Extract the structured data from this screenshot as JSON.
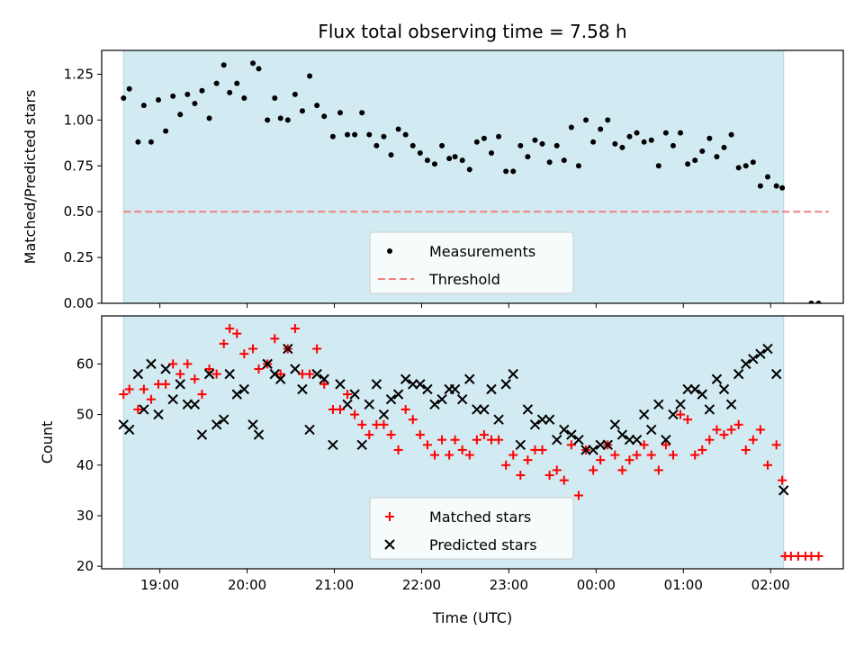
{
  "chart_data": [
    {
      "type": "scatter",
      "title": "Flux total observing time = 7.58 h",
      "xlabel": "",
      "ylabel": "Matched/Predicted stars",
      "xlim": [
        "18:20",
        "02:50"
      ],
      "ylim": [
        0,
        1.38
      ],
      "yticks": [
        0.0,
        0.25,
        0.5,
        0.75,
        1.0,
        1.25
      ],
      "ytick_labels": [
        "0.00",
        "0.25",
        "0.50",
        "0.75",
        "1.00",
        "1.25"
      ],
      "shaded_span": [
        "18:35",
        "02:09"
      ],
      "shade_color": "#add8e6",
      "legend_position": "lower center",
      "series": [
        {
          "name": "Measurements",
          "color": "#000000",
          "marker": "dot",
          "x": [
            "18:35",
            "18:39",
            "18:45",
            "18:49",
            "18:54",
            "18:59",
            "19:04",
            "19:09",
            "19:14",
            "19:19",
            "19:24",
            "19:29",
            "19:34",
            "19:39",
            "19:44",
            "19:48",
            "19:53",
            "19:58",
            "20:04",
            "20:08",
            "20:14",
            "20:19",
            "20:23",
            "20:28",
            "20:33",
            "20:38",
            "20:43",
            "20:48",
            "20:53",
            "20:59",
            "21:04",
            "21:09",
            "21:14",
            "21:19",
            "21:24",
            "21:29",
            "21:34",
            "21:39",
            "21:44",
            "21:49",
            "21:54",
            "21:59",
            "22:04",
            "22:09",
            "22:14",
            "22:19",
            "22:23",
            "22:28",
            "22:33",
            "22:38",
            "22:43",
            "22:48",
            "22:53",
            "22:58",
            "23:03",
            "23:08",
            "23:13",
            "23:18",
            "23:23",
            "23:28",
            "23:33",
            "23:38",
            "23:43",
            "23:48",
            "23:53",
            "23:58",
            "00:03",
            "00:08",
            "00:13",
            "00:18",
            "00:23",
            "00:28",
            "00:33",
            "00:38",
            "00:43",
            "00:48",
            "00:53",
            "00:58",
            "01:03",
            "01:08",
            "01:13",
            "01:18",
            "01:23",
            "01:28",
            "01:33",
            "01:38",
            "01:43",
            "01:48",
            "01:53",
            "01:58",
            "02:04",
            "02:08",
            "02:28",
            "02:33"
          ],
          "y": [
            1.12,
            1.17,
            0.88,
            1.08,
            0.88,
            1.11,
            0.94,
            1.13,
            1.03,
            1.14,
            1.09,
            1.16,
            1.01,
            1.2,
            1.3,
            1.15,
            1.2,
            1.12,
            1.31,
            1.28,
            1.0,
            1.12,
            1.01,
            1.0,
            1.14,
            1.05,
            1.24,
            1.08,
            1.02,
            0.91,
            1.04,
            0.92,
            0.92,
            1.04,
            0.92,
            0.86,
            0.91,
            0.81,
            0.95,
            0.92,
            0.86,
            0.82,
            0.78,
            0.76,
            0.86,
            0.79,
            0.8,
            0.78,
            0.73,
            0.88,
            0.9,
            0.82,
            0.91,
            0.72,
            0.72,
            0.86,
            0.8,
            0.89,
            0.87,
            0.77,
            0.86,
            0.78,
            0.96,
            0.75,
            1.0,
            0.88,
            0.95,
            1.0,
            0.87,
            0.85,
            0.91,
            0.93,
            0.88,
            0.89,
            0.75,
            0.93,
            0.86,
            0.93,
            0.76,
            0.78,
            0.83,
            0.9,
            0.8,
            0.85,
            0.92,
            0.74,
            0.75,
            0.77,
            0.64,
            0.69,
            0.64,
            0.63,
            0.0,
            0.0
          ]
        },
        {
          "name": "Threshold",
          "color": "#f08080",
          "style": "dashed",
          "x": [
            "18:35",
            "02:40"
          ],
          "y": [
            0.5,
            0.5
          ]
        }
      ]
    },
    {
      "type": "scatter",
      "title": "",
      "xlabel": "Time (UTC)",
      "ylabel": "Count",
      "xlim": [
        "18:20",
        "02:50"
      ],
      "ylim": [
        19.5,
        69.5
      ],
      "yticks": [
        20,
        30,
        40,
        50,
        60
      ],
      "ytick_labels": [
        "20",
        "30",
        "40",
        "50",
        "60"
      ],
      "xticks": [
        "19:00",
        "20:00",
        "21:00",
        "22:00",
        "23:00",
        "00:00",
        "01:00",
        "02:00"
      ],
      "shaded_span": [
        "18:35",
        "02:09"
      ],
      "shade_color": "#add8e6",
      "legend_position": "lower center",
      "series": [
        {
          "name": "Matched stars",
          "color": "#ff0000",
          "marker": "plus",
          "x": [
            "18:35",
            "18:39",
            "18:45",
            "18:49",
            "18:54",
            "18:59",
            "19:04",
            "19:09",
            "19:14",
            "19:19",
            "19:24",
            "19:29",
            "19:34",
            "19:39",
            "19:44",
            "19:48",
            "19:53",
            "19:58",
            "20:04",
            "20:08",
            "20:14",
            "20:19",
            "20:23",
            "20:28",
            "20:33",
            "20:38",
            "20:43",
            "20:48",
            "20:53",
            "20:59",
            "21:04",
            "21:09",
            "21:14",
            "21:19",
            "21:24",
            "21:29",
            "21:34",
            "21:39",
            "21:44",
            "21:49",
            "21:54",
            "21:59",
            "22:04",
            "22:09",
            "22:14",
            "22:19",
            "22:23",
            "22:28",
            "22:33",
            "22:38",
            "22:43",
            "22:48",
            "22:53",
            "22:58",
            "23:03",
            "23:08",
            "23:13",
            "23:18",
            "23:23",
            "23:28",
            "23:33",
            "23:38",
            "23:43",
            "23:48",
            "23:53",
            "23:58",
            "00:03",
            "00:08",
            "00:13",
            "00:18",
            "00:23",
            "00:28",
            "00:33",
            "00:38",
            "00:43",
            "00:48",
            "00:53",
            "00:58",
            "01:03",
            "01:08",
            "01:13",
            "01:18",
            "01:23",
            "01:28",
            "01:33",
            "01:38",
            "01:43",
            "01:48",
            "01:53",
            "01:58",
            "02:04",
            "02:08",
            "02:10",
            "02:14",
            "02:19",
            "02:24",
            "02:28",
            "02:33"
          ],
          "y": [
            54,
            55,
            51,
            55,
            53,
            56,
            56,
            60,
            58,
            60,
            57,
            54,
            59,
            58,
            64,
            67,
            66,
            62,
            63,
            59,
            60,
            65,
            58,
            63,
            67,
            58,
            58,
            63,
            56,
            51,
            51,
            54,
            50,
            48,
            46,
            48,
            48,
            46,
            43,
            51,
            49,
            46,
            44,
            42,
            45,
            42,
            45,
            43,
            42,
            45,
            46,
            45,
            45,
            40,
            42,
            38,
            41,
            43,
            43,
            38,
            39,
            37,
            44,
            34,
            43,
            39,
            41,
            44,
            42,
            39,
            41,
            42,
            44,
            42,
            39,
            44,
            42,
            50,
            49,
            42,
            43,
            45,
            47,
            46,
            47,
            48,
            43,
            45,
            47,
            40,
            44,
            37,
            22,
            22,
            22,
            22,
            22,
            22
          ]
        },
        {
          "name": "Predicted stars",
          "color": "#000000",
          "marker": "x",
          "x": [
            "18:35",
            "18:39",
            "18:45",
            "18:49",
            "18:54",
            "18:59",
            "19:04",
            "19:09",
            "19:14",
            "19:19",
            "19:24",
            "19:29",
            "19:34",
            "19:39",
            "19:44",
            "19:48",
            "19:53",
            "19:58",
            "20:04",
            "20:08",
            "20:14",
            "20:19",
            "20:23",
            "20:28",
            "20:33",
            "20:38",
            "20:43",
            "20:48",
            "20:53",
            "20:59",
            "21:04",
            "21:09",
            "21:14",
            "21:19",
            "21:24",
            "21:29",
            "21:34",
            "21:39",
            "21:44",
            "21:49",
            "21:54",
            "21:59",
            "22:04",
            "22:09",
            "22:14",
            "22:19",
            "22:23",
            "22:28",
            "22:33",
            "22:38",
            "22:43",
            "22:48",
            "22:53",
            "22:58",
            "23:03",
            "23:08",
            "23:13",
            "23:18",
            "23:23",
            "23:28",
            "23:33",
            "23:38",
            "23:43",
            "23:48",
            "23:53",
            "23:58",
            "00:03",
            "00:08",
            "00:13",
            "00:18",
            "00:23",
            "00:28",
            "00:33",
            "00:38",
            "00:43",
            "00:48",
            "00:53",
            "00:58",
            "01:03",
            "01:08",
            "01:13",
            "01:18",
            "01:23",
            "01:28",
            "01:33",
            "01:38",
            "01:43",
            "01:48",
            "01:53",
            "01:58",
            "02:04",
            "02:09"
          ],
          "y": [
            48,
            47,
            58,
            51,
            60,
            50,
            59,
            53,
            56,
            52,
            52,
            46,
            58,
            48,
            49,
            58,
            54,
            55,
            48,
            46,
            60,
            58,
            57,
            63,
            59,
            55,
            47,
            58,
            57,
            44,
            56,
            52,
            54,
            44,
            52,
            56,
            50,
            53,
            54,
            57,
            56,
            56,
            55,
            52,
            53,
            55,
            55,
            53,
            57,
            51,
            51,
            55,
            49,
            56,
            58,
            44,
            51,
            48,
            49,
            49,
            45,
            47,
            46,
            45,
            43,
            43,
            44,
            44,
            48,
            46,
            45,
            45,
            50,
            47,
            52,
            45,
            50,
            52,
            55,
            55,
            54,
            51,
            57,
            55,
            52,
            58,
            60,
            61,
            62,
            63,
            58,
            35
          ]
        }
      ]
    }
  ]
}
